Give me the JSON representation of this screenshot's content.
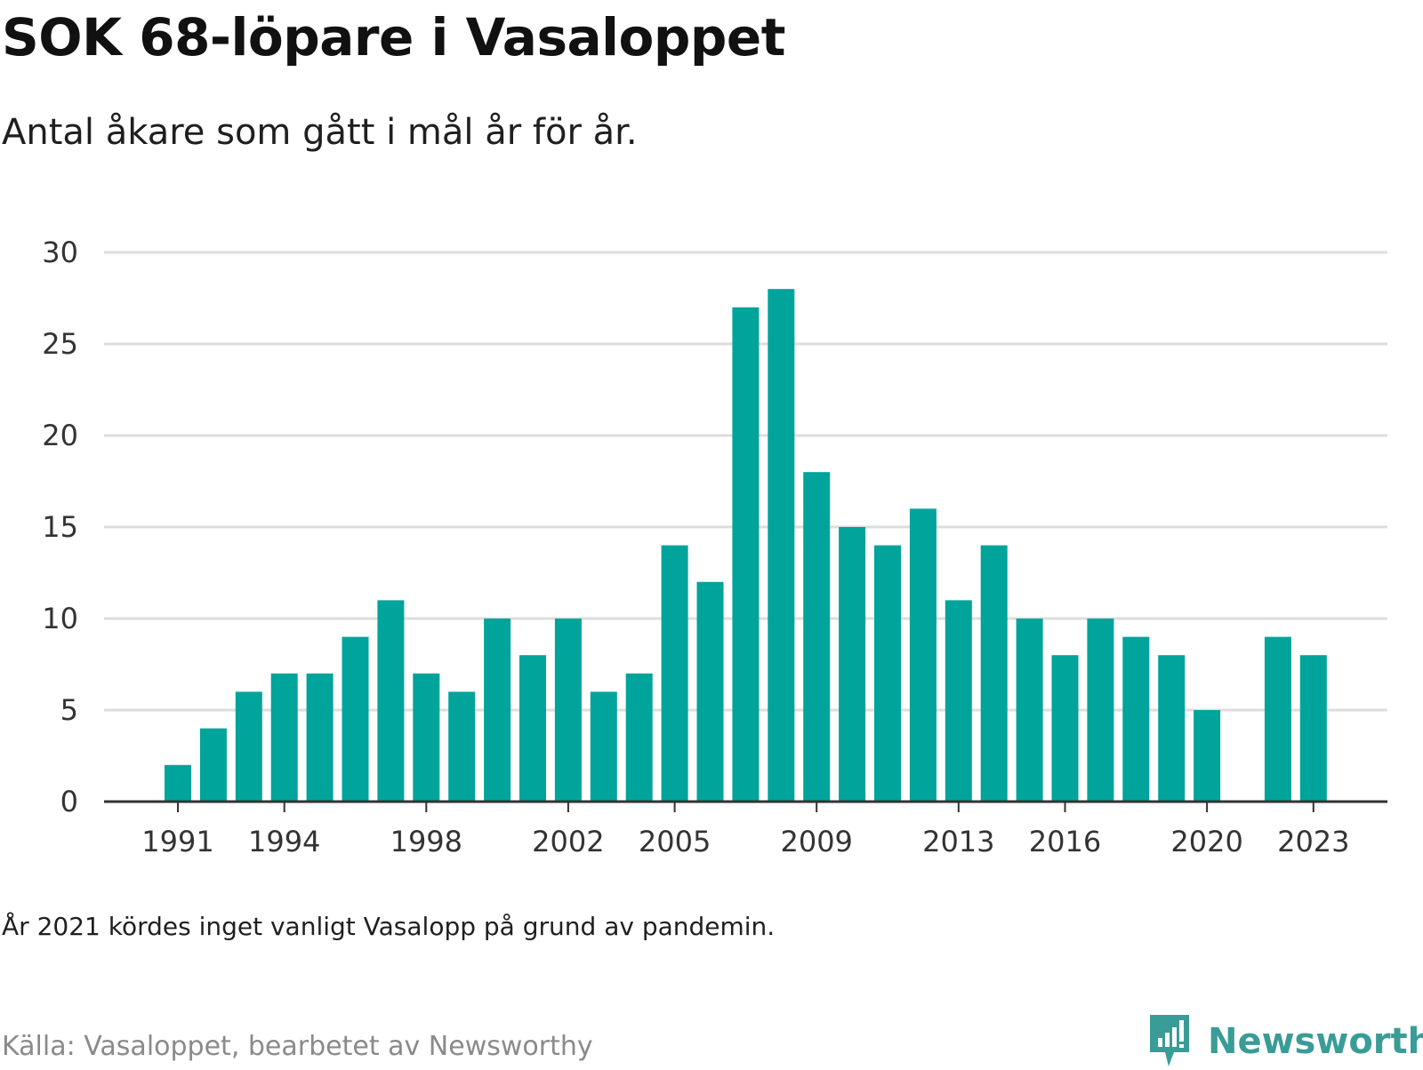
{
  "title": "SOK 68-löpare i Vasaloppet",
  "subtitle": "Antal åkare som gått i mål år för år.",
  "note": "År 2021 kördes inget vanligt Vasalopp på grund av pandemin.",
  "source": "Källa: Vasaloppet, bearbetet av Newsworthy",
  "logo_text": "Newsworthy",
  "colors": {
    "bar": "#00a49a",
    "grid": "#dddddd",
    "axis": "#333333",
    "logo": "#3a9c97"
  },
  "chart_data": {
    "type": "bar",
    "title": "SOK 68-löpare i Vasaloppet",
    "subtitle": "Antal åkare som gått i mål år för år.",
    "ylim": [
      0,
      30
    ],
    "yticks": [
      0,
      5,
      10,
      15,
      20,
      25,
      30
    ],
    "xticks": [
      1991,
      1994,
      1998,
      2002,
      2005,
      2009,
      2013,
      2016,
      2020,
      2023
    ],
    "grid": true,
    "x": [
      1991,
      1992,
      1993,
      1994,
      1995,
      1996,
      1997,
      1998,
      1999,
      2000,
      2001,
      2002,
      2003,
      2004,
      2005,
      2006,
      2007,
      2008,
      2009,
      2010,
      2011,
      2012,
      2013,
      2014,
      2015,
      2016,
      2017,
      2018,
      2019,
      2020,
      2021,
      2022,
      2023
    ],
    "values": [
      2,
      4,
      6,
      7,
      7,
      9,
      11,
      7,
      6,
      10,
      8,
      10,
      6,
      7,
      14,
      12,
      27,
      28,
      18,
      15,
      14,
      16,
      11,
      14,
      10,
      8,
      10,
      9,
      8,
      5,
      null,
      9,
      8
    ]
  }
}
